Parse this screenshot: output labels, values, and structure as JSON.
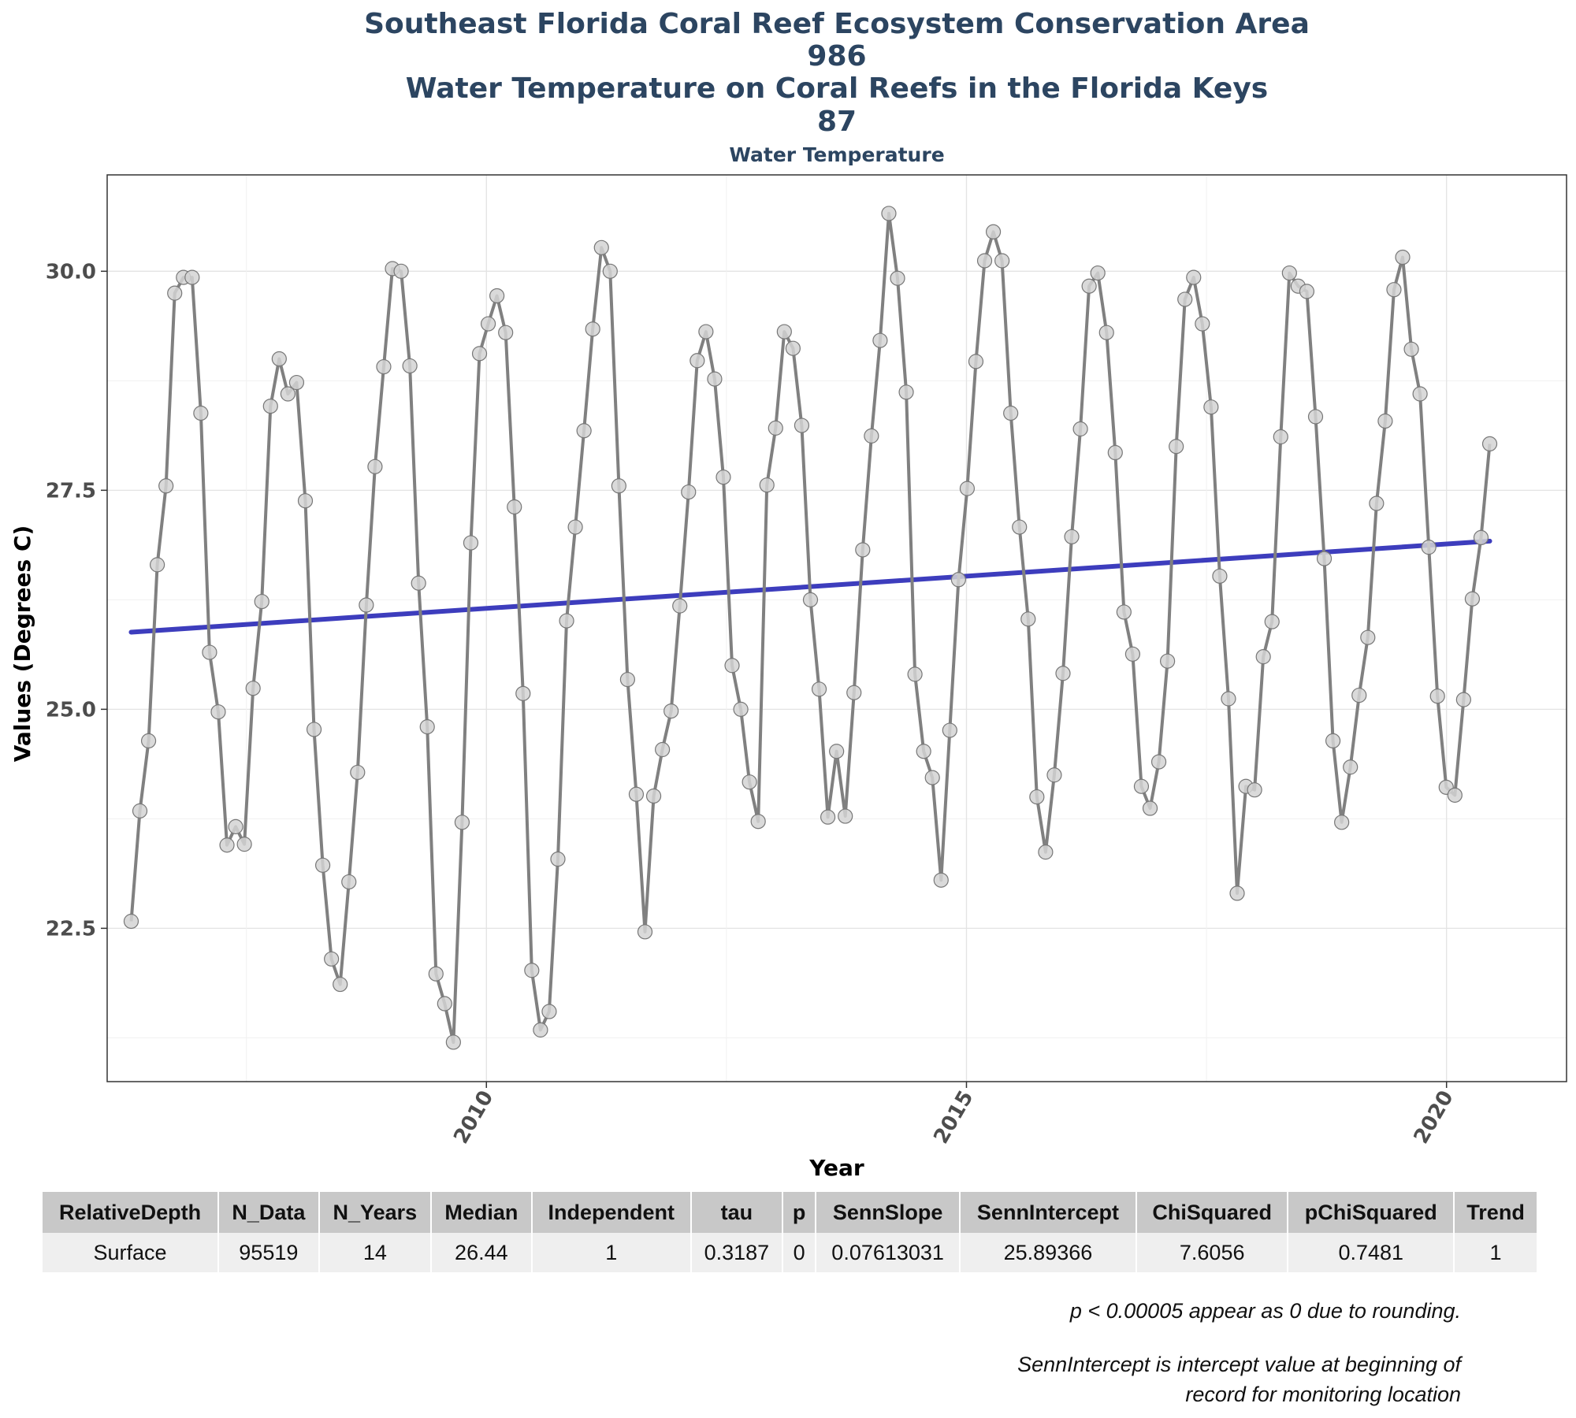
{
  "chart_data": {
    "type": "line",
    "title_lines": [
      "Southeast Florida Coral Reef Ecosystem Conservation Area",
      "986",
      "Water Temperature on Coral Reefs in the Florida Keys",
      "87"
    ],
    "subtitle": "Water Temperature",
    "xlabel": "Year",
    "ylabel": "Values (Degrees C)",
    "x_ticks": [
      2010,
      2015,
      2020
    ],
    "y_ticks": [
      22.5,
      25.0,
      27.5,
      30.0
    ],
    "y_tick_labels": [
      "22.5",
      "25.0",
      "27.5",
      "30.0"
    ],
    "xlim": [
      2006.05,
      2021.25
    ],
    "ylim": [
      20.75,
      31.1
    ],
    "grid": true,
    "series": [
      {
        "color": "#808080",
        "marker_fill": "#d3d3d3",
        "values": [
          22.58,
          23.84,
          24.64,
          26.65,
          27.55,
          29.75,
          29.93,
          29.93,
          28.38,
          25.65,
          24.97,
          23.45,
          23.66,
          23.46,
          25.24,
          26.23,
          28.46,
          29.0,
          28.6,
          28.73,
          27.38,
          24.77,
          23.22,
          22.15,
          21.86,
          23.03,
          24.28,
          26.19,
          27.77,
          28.91,
          30.03,
          30.0,
          28.92,
          26.44,
          24.8,
          21.98,
          21.64,
          21.2,
          23.71,
          26.9,
          29.06,
          29.4,
          29.72,
          29.3,
          27.31,
          25.18,
          22.02,
          21.34,
          21.55,
          23.29,
          26.01,
          27.08,
          28.18,
          29.34,
          30.27,
          30.0,
          27.55,
          25.34,
          24.03,
          22.46,
          24.01,
          24.54,
          24.98,
          26.18,
          27.48,
          28.98,
          29.31,
          28.77,
          27.65,
          25.5,
          25.0,
          24.17,
          23.72,
          27.56,
          28.21,
          29.31,
          29.12,
          28.24,
          26.25,
          25.23,
          23.77,
          24.52,
          23.78,
          25.19,
          26.82,
          28.12,
          29.21,
          30.66,
          29.92,
          28.62,
          25.4,
          24.52,
          24.22,
          23.05,
          24.76,
          26.48,
          27.52,
          28.97,
          30.12,
          30.45,
          30.12,
          28.38,
          27.08,
          26.03,
          24.0,
          23.37,
          24.25,
          25.41,
          26.97,
          28.2,
          29.83,
          29.98,
          29.3,
          27.93,
          26.11,
          25.63,
          24.12,
          23.87,
          24.4,
          25.55,
          28.0,
          29.68,
          29.93,
          29.4,
          28.45,
          26.52,
          25.12,
          22.9,
          24.12,
          24.08,
          25.6,
          26.0,
          28.11,
          29.98,
          29.83,
          29.77,
          28.34,
          26.72,
          24.64,
          23.71,
          24.34,
          25.16,
          25.82,
          27.35,
          28.29,
          29.79,
          30.16,
          29.11,
          28.6,
          26.85,
          25.15,
          24.11,
          24.02,
          25.11,
          26.26,
          26.96,
          28.03
        ]
      },
      {
        "type": "trend",
        "color": "#3d3dbd",
        "x": [
          2006.3,
          2020.45
        ],
        "values": [
          25.88,
          26.92
        ]
      }
    ]
  },
  "table": {
    "headers": [
      "RelativeDepth",
      "N_Data",
      "N_Years",
      "Median",
      "Independent",
      "tau",
      "p",
      "SennSlope",
      "SennIntercept",
      "ChiSquared",
      "pChiSquared",
      "Trend"
    ],
    "rows": [
      [
        "Surface",
        "95519",
        "14",
        "26.44",
        "1",
        "0.3187",
        "0",
        "0.07613031",
        "25.89366",
        "7.6056",
        "0.7481",
        "1"
      ]
    ]
  },
  "notes": {
    "p_note": "p < 0.00005 appear as 0 due to rounding.",
    "intercept_note_line1": "SennIntercept is intercept value at beginning of",
    "intercept_note_line2": "record for monitoring location"
  }
}
